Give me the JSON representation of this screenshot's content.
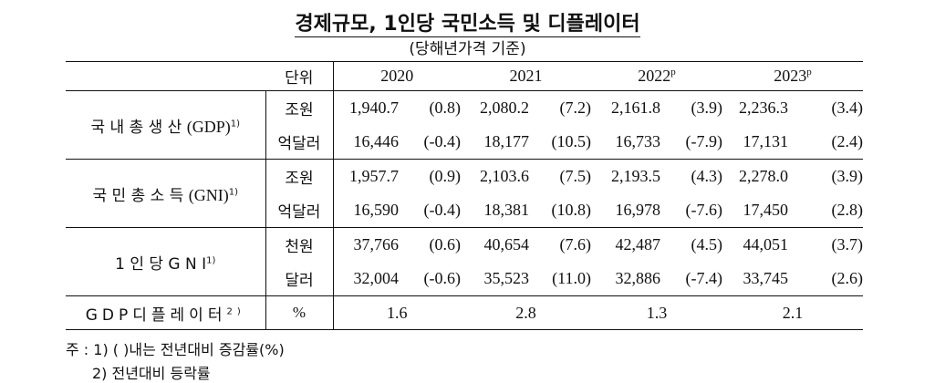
{
  "title": "경제규모, 1인당 국민소득 및 디플레이터",
  "subtitle": "(당해년가격 기준)",
  "header": {
    "unit": "단위",
    "years": [
      {
        "year": "2020",
        "mark": ""
      },
      {
        "year": "2021",
        "mark": ""
      },
      {
        "year": "2022",
        "mark": "p"
      },
      {
        "year": "2023",
        "mark": "p"
      }
    ]
  },
  "groups": [
    {
      "label": "국 내 총 생 산",
      "abbr": "(GDP)",
      "note_mark": "1)",
      "rows": [
        {
          "unit": "조원",
          "cells": [
            [
              "1,940.7",
              "(0.8)"
            ],
            [
              "2,080.2",
              "(7.2)"
            ],
            [
              "2,161.8",
              "(3.9)"
            ],
            [
              "2,236.3",
              "(3.4)"
            ]
          ]
        },
        {
          "unit": "억달러",
          "cells": [
            [
              "16,446",
              "(-0.4)"
            ],
            [
              "18,177",
              "(10.5)"
            ],
            [
              "16,733",
              "(-7.9)"
            ],
            [
              "17,131",
              "(2.4)"
            ]
          ]
        }
      ]
    },
    {
      "label": "국 민 총 소 득",
      "abbr": "(GNI)",
      "note_mark": "1)",
      "rows": [
        {
          "unit": "조원",
          "cells": [
            [
              "1,957.7",
              "(0.9)"
            ],
            [
              "2,103.6",
              "(7.5)"
            ],
            [
              "2,193.5",
              "(4.3)"
            ],
            [
              "2,278.0",
              "(3.9)"
            ]
          ]
        },
        {
          "unit": "억달러",
          "cells": [
            [
              "16,590",
              "(-0.4)"
            ],
            [
              "18,381",
              "(10.8)"
            ],
            [
              "16,978",
              "(-7.6)"
            ],
            [
              "17,450",
              "(2.8)"
            ]
          ]
        }
      ]
    },
    {
      "label": "1 인 당 G N I",
      "abbr": "",
      "note_mark": "1)",
      "rows": [
        {
          "unit": "천원",
          "cells": [
            [
              "37,766",
              "(0.6)"
            ],
            [
              "40,654",
              "(7.6)"
            ],
            [
              "42,487",
              "(4.5)"
            ],
            [
              "44,051",
              "(3.7)"
            ]
          ]
        },
        {
          "unit": "달러",
          "cells": [
            [
              "32,004",
              "(-0.6)"
            ],
            [
              "35,523",
              "(11.0)"
            ],
            [
              "32,886",
              "(-7.4)"
            ],
            [
              "33,745",
              "(2.6)"
            ]
          ]
        }
      ]
    }
  ],
  "deflator": {
    "label": "GDP디플레이터",
    "note_mark": "2)",
    "unit": "%",
    "values": [
      "1.6",
      "2.8",
      "1.3",
      "2.1"
    ]
  },
  "notes": [
    "주 : 1) (   )내는 전년대비 증감률(%)",
    "2) 전년대비 등락률"
  ]
}
